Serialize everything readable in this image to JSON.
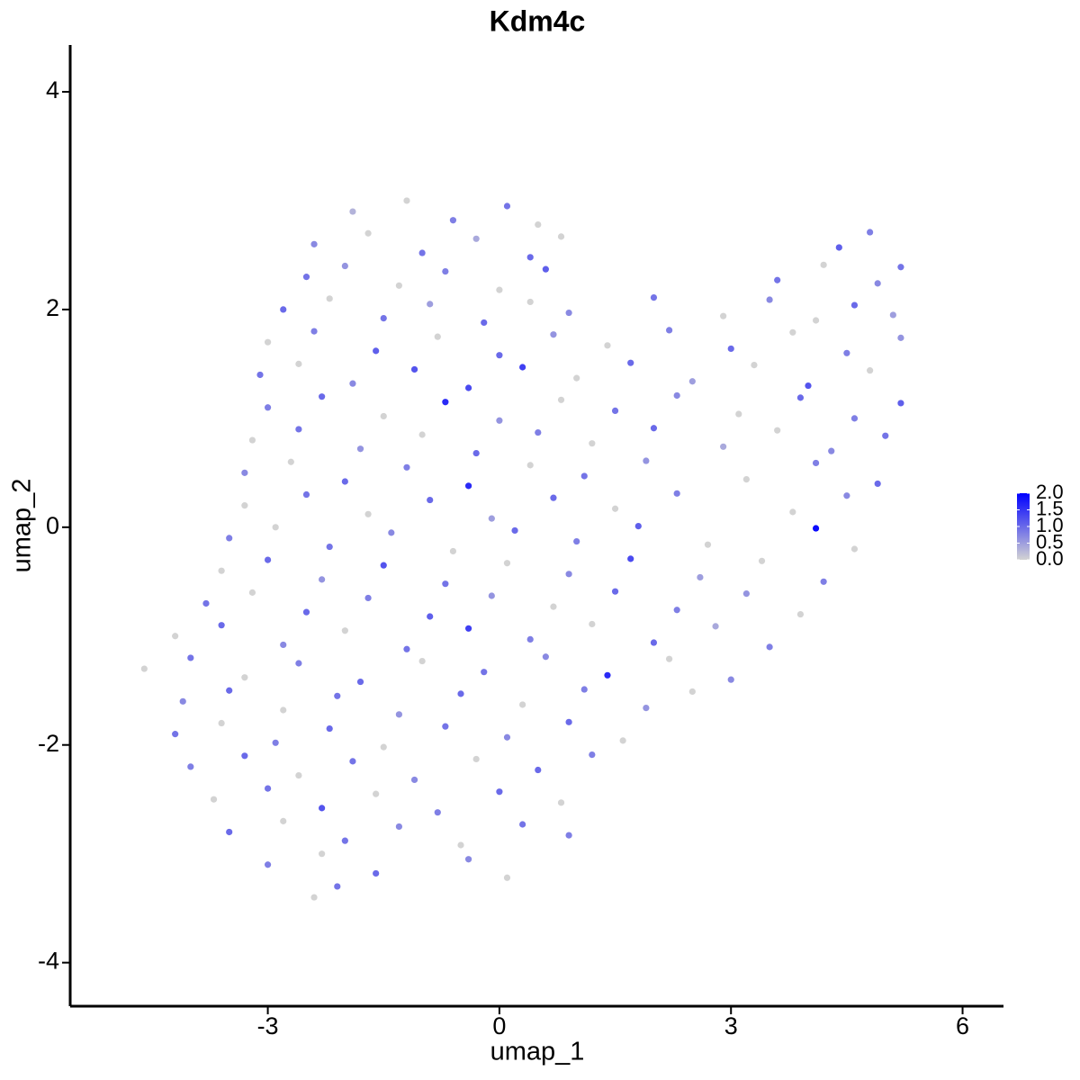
{
  "chart_data": {
    "type": "scatter",
    "title": "Kdm4c",
    "xlabel": "umap_1",
    "ylabel": "umap_2",
    "xlim": [
      -5.56,
      6.53
    ],
    "ylim": [
      -4.4,
      4.43
    ],
    "xticks": [
      -3,
      0,
      3,
      6
    ],
    "yticks": [
      -4,
      -2,
      0,
      2,
      4
    ],
    "clim": [
      0,
      2
    ],
    "low_color": "#d3d3d3",
    "high_color": "#0000ff",
    "cticks": [
      {
        "value": 0,
        "label": "0.0"
      },
      0.5,
      {
        "value": 1,
        "label": "1.0"
      },
      1.5,
      {
        "value": 2,
        "label": "2.0"
      }
    ],
    "series": [
      {
        "x": [
          -1.9,
          -1.2,
          -0.6,
          0.1,
          0.5,
          -2.4,
          -1.7,
          -1.0,
          -0.3,
          0.4,
          0.8,
          4.4,
          4.8,
          -2.5,
          -2.0,
          -1.3,
          -0.7,
          0.0,
          0.6,
          3.6,
          4.2,
          4.9,
          5.2,
          -2.8,
          -2.2,
          -1.5,
          -0.9,
          -0.2,
          0.4,
          0.9,
          2.0,
          2.9,
          3.5,
          4.1,
          4.6,
          5.1,
          -3.0,
          -2.4,
          -1.6,
          -0.8,
          0.0,
          0.7,
          1.4,
          2.2,
          3.0,
          3.8,
          4.5,
          5.2,
          -3.1,
          -2.6,
          -1.9,
          -1.1,
          -0.4,
          0.3,
          1.0,
          1.7,
          2.5,
          3.3,
          4.0,
          4.8,
          -3.0,
          -2.3,
          -1.5,
          -0.7,
          0.0,
          0.8,
          1.5,
          2.3,
          3.1,
          3.9,
          4.6,
          5.2,
          -3.2,
          -2.6,
          -1.8,
          -1.0,
          -0.3,
          0.5,
          1.2,
          2.0,
          2.9,
          3.6,
          4.3,
          5.0,
          -3.3,
          -2.7,
          -2.0,
          -1.2,
          -0.4,
          0.4,
          1.1,
          1.9,
          3.2,
          4.1,
          4.9,
          -3.3,
          -2.5,
          -1.7,
          -0.9,
          -0.1,
          0.7,
          1.5,
          2.3,
          3.8,
          4.5,
          -3.5,
          -2.9,
          -2.2,
          -1.4,
          -0.6,
          0.2,
          1.0,
          1.8,
          2.7,
          4.1,
          4.6,
          -3.6,
          -3.0,
          -2.3,
          -1.5,
          -0.7,
          0.1,
          0.9,
          1.7,
          2.6,
          3.4,
          4.2,
          -3.8,
          -3.2,
          -2.5,
          -1.7,
          -0.9,
          -0.1,
          0.7,
          1.5,
          2.3,
          3.2,
          3.9,
          -4.2,
          -3.6,
          -2.8,
          -2.0,
          -1.2,
          -0.4,
          0.4,
          1.2,
          2.0,
          2.8,
          3.5,
          -4.6,
          -4.0,
          -3.3,
          -2.6,
          -1.8,
          -1.0,
          -0.2,
          0.6,
          1.4,
          2.2,
          3.0,
          -4.1,
          -3.5,
          -2.8,
          -2.1,
          -1.3,
          -0.5,
          0.3,
          1.1,
          1.9,
          2.5,
          -4.2,
          -3.6,
          -2.9,
          -2.2,
          -1.5,
          -0.7,
          0.1,
          0.9,
          1.6,
          -4.0,
          -3.3,
          -2.6,
          -1.9,
          -1.1,
          -0.3,
          0.5,
          1.2,
          -3.7,
          -3.0,
          -2.3,
          -1.6,
          -0.8,
          0.0,
          0.8,
          -3.5,
          -2.8,
          -2.0,
          -1.3,
          -0.5,
          0.3,
          0.9,
          -3.0,
          -2.3,
          -1.6,
          -0.4,
          0.1,
          -2.4,
          -2.1
        ],
        "y": [
          2.9,
          3.0,
          2.82,
          2.95,
          2.78,
          2.6,
          2.7,
          2.52,
          2.65,
          2.48,
          2.67,
          2.57,
          2.71,
          2.3,
          2.4,
          2.22,
          2.35,
          2.18,
          2.37,
          2.27,
          2.41,
          2.24,
          2.39,
          2.0,
          2.1,
          1.92,
          2.05,
          1.88,
          2.07,
          1.97,
          2.11,
          1.94,
          2.09,
          1.9,
          2.04,
          1.95,
          1.7,
          1.8,
          1.62,
          1.75,
          1.58,
          1.77,
          1.67,
          1.81,
          1.64,
          1.79,
          1.6,
          1.74,
          1.4,
          1.5,
          1.32,
          1.45,
          1.28,
          1.47,
          1.37,
          1.51,
          1.34,
          1.49,
          1.3,
          1.44,
          1.1,
          1.2,
          1.02,
          1.15,
          0.98,
          1.17,
          1.07,
          1.21,
          1.04,
          1.19,
          1.0,
          1.14,
          0.8,
          0.9,
          0.72,
          0.85,
          0.68,
          0.87,
          0.77,
          0.91,
          0.74,
          0.89,
          0.7,
          0.84,
          0.5,
          0.6,
          0.42,
          0.55,
          0.38,
          0.57,
          0.47,
          0.61,
          0.44,
          0.59,
          0.4,
          0.2,
          0.3,
          0.12,
          0.25,
          0.08,
          0.27,
          0.17,
          0.31,
          0.14,
          0.29,
          -0.1,
          0,
          -0.18,
          -0.05,
          -0.22,
          -0.03,
          -0.13,
          0.01,
          -0.16,
          -0.01,
          -0.2,
          -0.4,
          -0.3,
          -0.48,
          -0.35,
          -0.52,
          -0.33,
          -0.43,
          -0.29,
          -0.46,
          -0.31,
          -0.5,
          -0.7,
          -0.6,
          -0.78,
          -0.65,
          -0.82,
          -0.63,
          -0.73,
          -0.59,
          -0.76,
          -0.61,
          -0.8,
          -1.0,
          -0.9,
          -1.08,
          -0.95,
          -1.12,
          -0.93,
          -1.03,
          -0.89,
          -1.06,
          -0.91,
          -1.1,
          -1.3,
          -1.2,
          -1.38,
          -1.25,
          -1.42,
          -1.23,
          -1.33,
          -1.19,
          -1.36,
          -1.21,
          -1.4,
          -1.6,
          -1.5,
          -1.68,
          -1.55,
          -1.72,
          -1.53,
          -1.63,
          -1.49,
          -1.66,
          -1.51,
          -1.9,
          -1.8,
          -1.98,
          -1.85,
          -2.02,
          -1.83,
          -1.93,
          -1.79,
          -1.96,
          -2.2,
          -2.1,
          -2.28,
          -2.15,
          -2.32,
          -2.13,
          -2.23,
          -2.09,
          -2.5,
          -2.4,
          -2.58,
          -2.45,
          -2.62,
          -2.43,
          -2.53,
          -2.8,
          -2.7,
          -2.88,
          -2.75,
          -2.92,
          -2.73,
          -2.83,
          -3.1,
          -3.0,
          -3.18,
          -3.05,
          -3.22,
          -3.4,
          -3.3
        ],
        "values": [
          0.3,
          0,
          0.8,
          0.9,
          0,
          0.7,
          0,
          0.9,
          0.4,
          1.0,
          0,
          1.1,
          0.8,
          0.9,
          0.6,
          0,
          0.8,
          0,
          1.1,
          0.9,
          0,
          0.7,
          0.9,
          1.0,
          0,
          0.9,
          0.5,
          1.0,
          0,
          0.7,
          0.9,
          0,
          0.7,
          0,
          1.0,
          0.5,
          0,
          0.8,
          1.1,
          0,
          1.0,
          0.6,
          0,
          0.8,
          1.0,
          0,
          0.8,
          0.6,
          0.9,
          0,
          0.7,
          1.2,
          1.3,
          1.4,
          0,
          1.0,
          0.5,
          0,
          1.2,
          0,
          0.8,
          1.0,
          0,
          1.6,
          0.6,
          0,
          0.9,
          0.7,
          0,
          1.0,
          0.8,
          1.1,
          0,
          0.9,
          0.6,
          0,
          1.0,
          0.8,
          0,
          1.0,
          0.4,
          0,
          0.7,
          0.9,
          0.7,
          0,
          1.0,
          0.8,
          1.6,
          0,
          0.9,
          0.6,
          0,
          0.8,
          1.0,
          0,
          0.9,
          0,
          1.0,
          0.5,
          1.0,
          0,
          0.8,
          0,
          0.7,
          0.8,
          0,
          0.9,
          0.7,
          0,
          1.0,
          0.8,
          1.1,
          0,
          1.9,
          0,
          0,
          1.0,
          0.6,
          1.2,
          0.9,
          0,
          0.7,
          1.3,
          0.5,
          0,
          0.8,
          0.9,
          0,
          1.0,
          0.8,
          1.1,
          0.6,
          0,
          1.0,
          0.8,
          0.6,
          0,
          0,
          1.0,
          0.7,
          0,
          0.9,
          1.4,
          0.8,
          0,
          1.0,
          0.4,
          0.8,
          0,
          0.9,
          0,
          0.8,
          1.0,
          0,
          0.9,
          0.7,
          1.6,
          0,
          0.7,
          0.7,
          1.0,
          0,
          0.9,
          0.6,
          1.0,
          0,
          0.8,
          0.6,
          0,
          0.9,
          0,
          0.8,
          1.0,
          0,
          0.9,
          0.7,
          1.0,
          0,
          0.8,
          1.0,
          0,
          0.9,
          0.7,
          0,
          1.0,
          0.8,
          0,
          0.9,
          1.2,
          0,
          0.8,
          1.0,
          0,
          1.0,
          0,
          0.9,
          0.7,
          0,
          0.9,
          0.8,
          0.8,
          0,
          1.0,
          0.7,
          0,
          0,
          0.9
        ]
      }
    ]
  }
}
